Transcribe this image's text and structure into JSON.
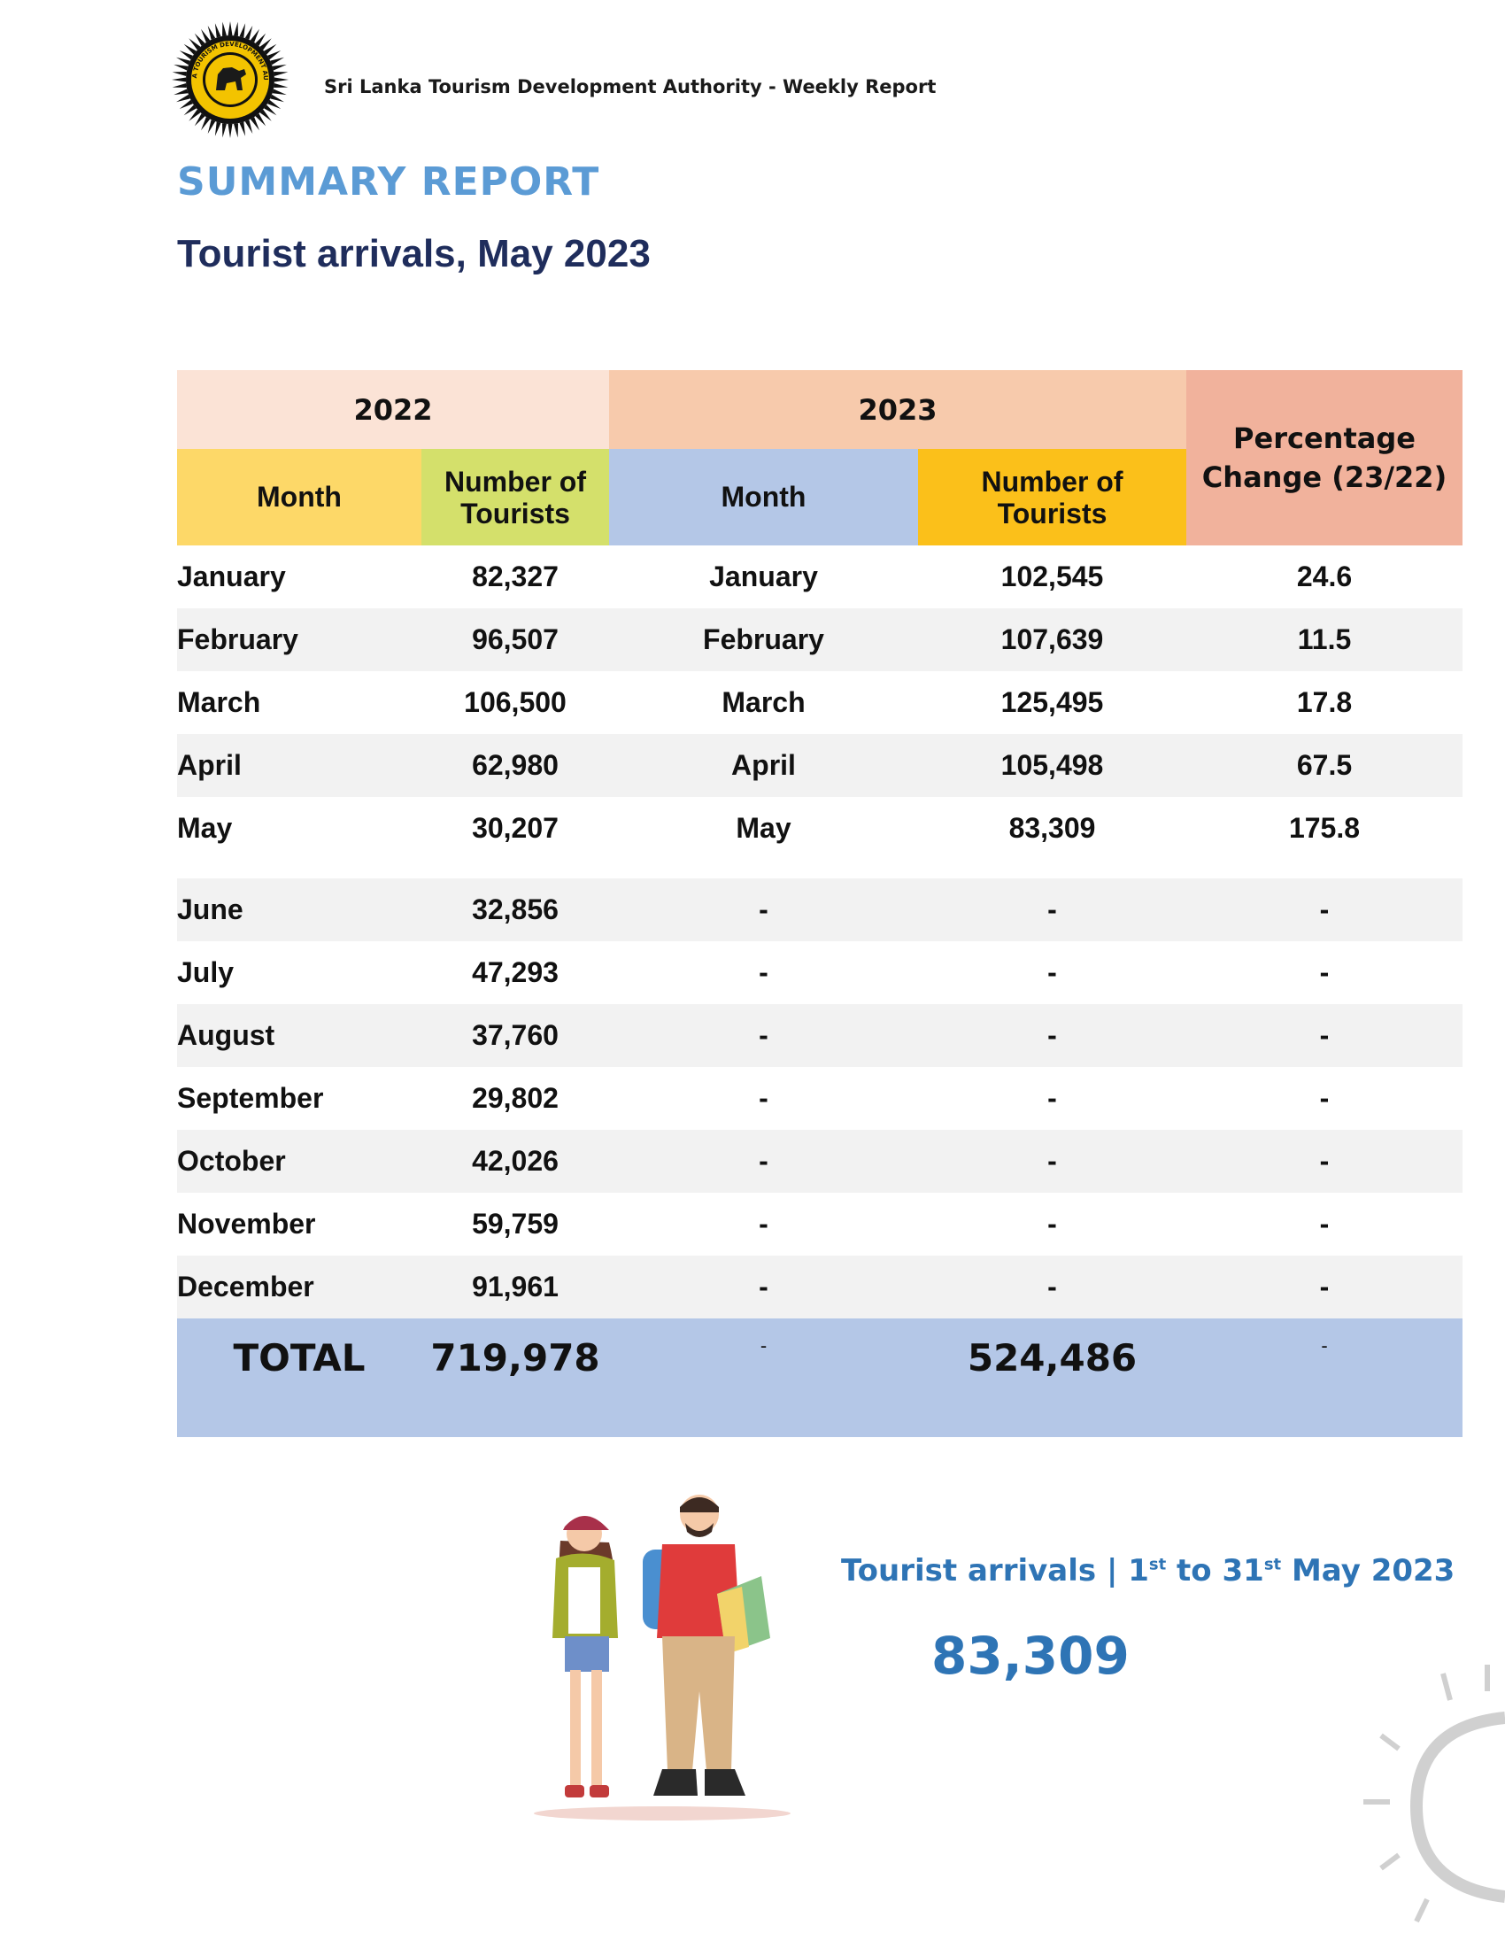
{
  "header": {
    "org_report": "Sri Lanka Tourism Development Authority - Weekly Report",
    "logo_icon": "sri-lanka-tourism-seal-icon",
    "logo_text": "SRI LANKA TOURISM DEVELOPMENT AUTHORITY"
  },
  "summary_title": "SUMMARY REPORT",
  "sub_title": "Tourist arrivals, May 2023",
  "table": {
    "year_2022": "2022",
    "year_2023": "2023",
    "col_month": "Month",
    "col_tourists_l1": "Number of",
    "col_tourists_l2": "Tourists",
    "col_pct_l1": "Percentage",
    "col_pct_l2": "Change (23/22)",
    "rows": [
      {
        "month22": "January",
        "n22": "82,327",
        "month23": "January",
        "n23": "102,545",
        "pct": "24.6"
      },
      {
        "month22": "February",
        "n22": "96,507",
        "month23": "February",
        "n23": "107,639",
        "pct": "11.5"
      },
      {
        "month22": "March",
        "n22": "106,500",
        "month23": "March",
        "n23": "125,495",
        "pct": "17.8"
      },
      {
        "month22": "April",
        "n22": "62,980",
        "month23": "April",
        "n23": "105,498",
        "pct": "67.5"
      },
      {
        "month22": "May",
        "n22": "30,207",
        "month23": "May",
        "n23": "83,309",
        "pct": "175.8"
      },
      {
        "month22": "June",
        "n22": "32,856",
        "month23": "-",
        "n23": "-",
        "pct": "-"
      },
      {
        "month22": "July",
        "n22": "47,293",
        "month23": "-",
        "n23": "-",
        "pct": "-"
      },
      {
        "month22": "August",
        "n22": "37,760",
        "month23": "-",
        "n23": "-",
        "pct": "-"
      },
      {
        "month22": "September",
        "n22": "29,802",
        "month23": "-",
        "n23": "-",
        "pct": "-"
      },
      {
        "month22": "October",
        "n22": "42,026",
        "month23": "-",
        "n23": "-",
        "pct": "-"
      },
      {
        "month22": "November",
        "n22": "59,759",
        "month23": "-",
        "n23": "-",
        "pct": "-"
      },
      {
        "month22": "December",
        "n22": "91,961",
        "month23": "-",
        "n23": "-",
        "pct": "-"
      }
    ],
    "total": {
      "label": "TOTAL",
      "n22": "719,978",
      "month23": "-",
      "n23": "524,486",
      "pct": "-"
    }
  },
  "illustration_icon": "travelers-illustration-icon",
  "sun_icon": "sun-decoration-icon",
  "arrivals_box": {
    "label_prefix": "Tourist arrivals | 1",
    "sup1": "st",
    "label_mid": " to 31",
    "sup2": "st",
    "label_suffix": " May 2023",
    "value": "83,309"
  }
}
